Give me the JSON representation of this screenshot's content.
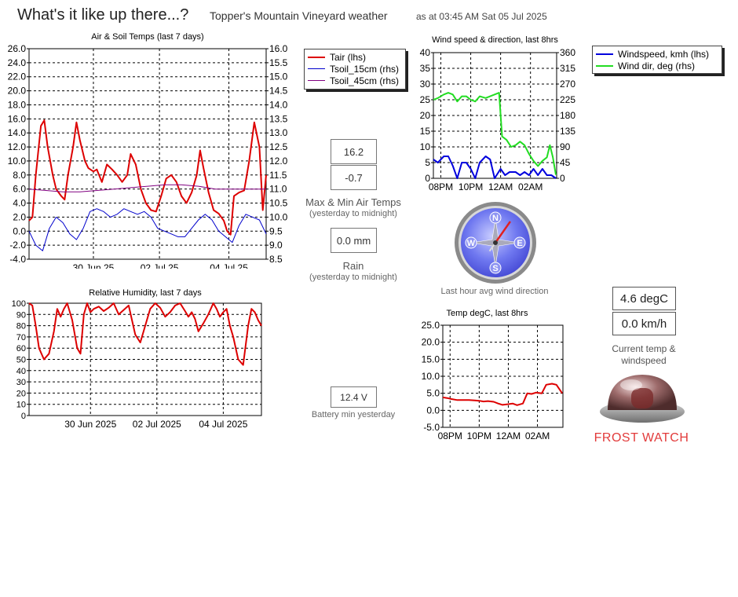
{
  "header": {
    "title": "What's it like up there...?",
    "subtitle": "Topper's Mountain Vineyard weather",
    "timestamp": "as at 03:45 AM Sat 05 Jul 2025"
  },
  "colors": {
    "tair": "#dd0000",
    "tsoil15": "#0000cc",
    "tsoil45": "#800080",
    "windspeed": "#0000dd",
    "winddir": "#22dd22",
    "frost": "#e23b3b"
  },
  "air_soil": {
    "legend": [
      "Tair (lhs)",
      "Tsoil_15cm (rhs)",
      "Tsoil_45cm (rhs)"
    ]
  },
  "wind": {
    "legend": [
      "Windspeed, kmh (lhs)",
      "Wind dir, deg (rhs)"
    ]
  },
  "compass": {
    "caption": "Last hour avg wind direction",
    "direction_deg": 35,
    "letters": [
      "N",
      "E",
      "S",
      "W"
    ]
  },
  "air_minmax": {
    "max": "16.2",
    "min": "-0.7",
    "label": "Max & Min Air Temps",
    "sub": "(yesterday to midnight)"
  },
  "rain": {
    "value": "0.0 mm",
    "label": "Rain",
    "sub": "(yesterday to midnight)"
  },
  "battery": {
    "value": "12.4 V",
    "label": "Battery min yesterday"
  },
  "current": {
    "temp": "4.6 degC",
    "wind": "0.0 km/h",
    "label": "Current temp & windspeed"
  },
  "frost": {
    "label": "FROST WATCH"
  },
  "chart_data": [
    {
      "type": "line",
      "title": "Air & Soil Temps (last 7 days)",
      "x_tick_labels": [
        "30 Jun 25",
        "02 Jul 25",
        "04 Jul 25"
      ],
      "ylim": [
        -4,
        26
      ],
      "ylim_right": [
        8.5,
        16
      ],
      "yticks": [
        "26.0",
        "24.0",
        "22.0",
        "20.0",
        "18.0",
        "16.0",
        "14.0",
        "12.0",
        "10.0",
        "8.0",
        "6.0",
        "4.0",
        "2.0",
        "0.0",
        "-2.0",
        "-4.0"
      ],
      "yticks_right": [
        "16.0",
        "15.5",
        "15.0",
        "14.5",
        "14.0",
        "13.5",
        "13.0",
        "12.5",
        "12.0",
        "11.5",
        "11.0",
        "10.5",
        "10.0",
        "9.5",
        "9.0",
        "8.5"
      ],
      "x_days": [
        0,
        7
      ],
      "grid": true,
      "series": [
        {
          "name": "Tair (lhs)",
          "axis": "left",
          "x": [
            0.0,
            0.1,
            0.2,
            0.35,
            0.45,
            0.55,
            0.7,
            0.8,
            0.95,
            1.05,
            1.15,
            1.3,
            1.4,
            1.5,
            1.65,
            1.75,
            1.9,
            2.0,
            2.15,
            2.3,
            2.45,
            2.6,
            2.75,
            2.9,
            3.0,
            3.15,
            3.3,
            3.45,
            3.6,
            3.75,
            3.9,
            4.05,
            4.2,
            4.35,
            4.5,
            4.65,
            4.8,
            4.95,
            5.05,
            5.15,
            5.3,
            5.45,
            5.6,
            5.75,
            5.85,
            5.95,
            6.05,
            6.2,
            6.35,
            6.5,
            6.65,
            6.8,
            6.9,
            7.0
          ],
          "y": [
            1.5,
            2.0,
            8.0,
            15.0,
            15.8,
            12.0,
            8.0,
            6.0,
            5.0,
            4.5,
            8.0,
            12.0,
            15.5,
            13.0,
            10.0,
            9.0,
            8.5,
            8.8,
            7.0,
            9.5,
            8.8,
            8.0,
            7.0,
            8.0,
            11.0,
            9.5,
            6.0,
            4.0,
            3.0,
            2.8,
            5.0,
            7.5,
            8.0,
            7.0,
            5.0,
            4.0,
            5.5,
            8.0,
            11.5,
            9.0,
            5.5,
            3.0,
            2.5,
            1.5,
            0.0,
            -0.5,
            5.0,
            5.5,
            5.8,
            10.0,
            15.5,
            12.0,
            3.0,
            8.0
          ]
        },
        {
          "name": "Tsoil_15cm (rhs)",
          "axis": "right",
          "x": [
            0.0,
            0.2,
            0.4,
            0.6,
            0.8,
            1.0,
            1.2,
            1.4,
            1.6,
            1.8,
            2.0,
            2.2,
            2.4,
            2.6,
            2.8,
            3.0,
            3.2,
            3.4,
            3.6,
            3.8,
            4.0,
            4.2,
            4.4,
            4.6,
            4.8,
            5.0,
            5.2,
            5.4,
            5.6,
            5.8,
            6.0,
            6.2,
            6.4,
            6.6,
            6.8,
            7.0
          ],
          "y": [
            9.5,
            9.0,
            8.8,
            9.6,
            10.0,
            9.8,
            9.4,
            9.2,
            9.6,
            10.2,
            10.3,
            10.2,
            10.0,
            10.1,
            10.3,
            10.2,
            10.1,
            10.2,
            10.0,
            9.6,
            9.5,
            9.4,
            9.3,
            9.3,
            9.6,
            9.9,
            10.1,
            9.9,
            9.5,
            9.3,
            9.1,
            9.7,
            10.1,
            10.0,
            9.9,
            9.4
          ]
        },
        {
          "name": "Tsoil_45cm (rhs)",
          "axis": "right",
          "x": [
            0.0,
            0.5,
            1.0,
            1.5,
            2.0,
            2.5,
            3.0,
            3.5,
            4.0,
            4.5,
            5.0,
            5.5,
            6.0,
            6.5,
            7.0
          ],
          "y": [
            11.0,
            10.95,
            10.9,
            10.9,
            10.95,
            11.0,
            11.05,
            11.1,
            11.15,
            11.15,
            11.1,
            11.0,
            11.0,
            11.0,
            11.0
          ]
        }
      ]
    },
    {
      "type": "line",
      "title": "Relative Humidity, last 7 days",
      "x_tick_labels": [
        "30 Jun 2025",
        "02 Jul 2025",
        "04 Jul 2025"
      ],
      "ylim": [
        0,
        100
      ],
      "yticks": [
        "100",
        "90",
        "80",
        "70",
        "60",
        "50",
        "40",
        "30",
        "20",
        "10",
        "0"
      ],
      "x_days": [
        0,
        7
      ],
      "grid": true,
      "series": [
        {
          "name": "",
          "axis": "left",
          "x": [
            0.0,
            0.1,
            0.2,
            0.3,
            0.45,
            0.6,
            0.75,
            0.85,
            0.95,
            1.05,
            1.15,
            1.3,
            1.45,
            1.55,
            1.65,
            1.75,
            1.85,
            1.95,
            2.1,
            2.25,
            2.4,
            2.55,
            2.7,
            2.85,
            3.0,
            3.1,
            3.2,
            3.35,
            3.5,
            3.65,
            3.8,
            3.95,
            4.1,
            4.25,
            4.4,
            4.55,
            4.7,
            4.8,
            4.9,
            5.0,
            5.1,
            5.25,
            5.4,
            5.55,
            5.65,
            5.75,
            5.85,
            5.95,
            6.05,
            6.15,
            6.3,
            6.45,
            6.6,
            6.7,
            6.8,
            6.9,
            7.0
          ],
          "y": [
            100,
            98,
            80,
            60,
            50,
            55,
            75,
            95,
            88,
            95,
            100,
            85,
            60,
            55,
            90,
            100,
            92,
            95,
            97,
            93,
            96,
            100,
            90,
            94,
            98,
            85,
            72,
            65,
            80,
            95,
            100,
            96,
            88,
            92,
            98,
            100,
            93,
            88,
            92,
            86,
            75,
            82,
            90,
            100,
            95,
            88,
            92,
            95,
            80,
            70,
            50,
            45,
            80,
            95,
            92,
            85,
            80
          ]
        }
      ]
    },
    {
      "type": "line",
      "title": "Wind speed & direction, last 8hrs",
      "x_tick_labels": [
        "08PM",
        "10PM",
        "12AM",
        "02AM"
      ],
      "ylim": [
        0,
        40
      ],
      "ylim_right": [
        0,
        360
      ],
      "yticks": [
        "40",
        "35",
        "30",
        "25",
        "20",
        "15",
        "10",
        "5",
        "0"
      ],
      "yticks_right": [
        "360",
        "315",
        "270",
        "225",
        "180",
        "135",
        "90",
        "45",
        "0"
      ],
      "x_hours": [
        19.5,
        27.75
      ],
      "grid": true,
      "series": [
        {
          "name": "Windspeed, kmh (lhs)",
          "axis": "left",
          "x": [
            19.5,
            19.8,
            20.2,
            20.5,
            20.8,
            21.1,
            21.4,
            21.7,
            22.0,
            22.3,
            22.6,
            23.0,
            23.3,
            23.6,
            24.0,
            24.3,
            24.6,
            25.0,
            25.3,
            25.6,
            25.9,
            26.2,
            26.5,
            26.8,
            27.1,
            27.4,
            27.7
          ],
          "y": [
            6,
            5,
            7,
            7,
            4,
            0,
            5,
            5,
            3,
            0,
            5,
            7,
            6,
            0,
            3,
            1,
            2,
            2,
            1,
            2,
            1,
            3,
            1,
            3,
            1,
            1,
            0
          ]
        },
        {
          "name": "Wind dir, deg (rhs)",
          "axis": "right",
          "x": [
            19.5,
            19.8,
            20.2,
            20.5,
            20.8,
            21.1,
            21.4,
            21.7,
            22.0,
            22.3,
            22.6,
            23.0,
            23.3,
            23.6,
            23.9,
            24.1,
            24.4,
            24.7,
            25.0,
            25.3,
            25.6,
            25.9,
            26.2,
            26.5,
            26.8,
            27.1,
            27.3,
            27.5,
            27.7
          ],
          "y": [
            225,
            230,
            240,
            245,
            240,
            220,
            235,
            235,
            225,
            220,
            235,
            230,
            235,
            240,
            245,
            120,
            110,
            90,
            95,
            105,
            95,
            70,
            50,
            35,
            50,
            60,
            95,
            60,
            10
          ]
        }
      ]
    },
    {
      "type": "line",
      "title": "Temp degC,  last 8hrs",
      "x_tick_labels": [
        "08PM",
        "10PM",
        "12AM",
        "02AM"
      ],
      "ylim": [
        -5,
        25
      ],
      "yticks": [
        "25.0",
        "20.0",
        "15.0",
        "10.0",
        "5.0",
        "0.0",
        "-5.0"
      ],
      "x_hours": [
        19.5,
        27.75
      ],
      "grid": true,
      "series": [
        {
          "name": "",
          "axis": "left",
          "x": [
            19.5,
            19.8,
            20.1,
            20.5,
            20.9,
            21.3,
            21.7,
            22.0,
            22.3,
            22.6,
            23.0,
            23.3,
            23.6,
            24.0,
            24.3,
            24.6,
            25.0,
            25.3,
            25.6,
            25.9,
            26.3,
            26.6,
            27.0,
            27.3,
            27.7
          ],
          "y": [
            3.8,
            3.6,
            3.3,
            3.0,
            3.0,
            3.0,
            2.9,
            2.8,
            2.6,
            2.7,
            2.5,
            2.0,
            1.6,
            1.8,
            2.0,
            1.5,
            2.0,
            5.0,
            4.8,
            5.2,
            5.0,
            7.5,
            7.8,
            7.5,
            5.0
          ]
        }
      ]
    }
  ]
}
